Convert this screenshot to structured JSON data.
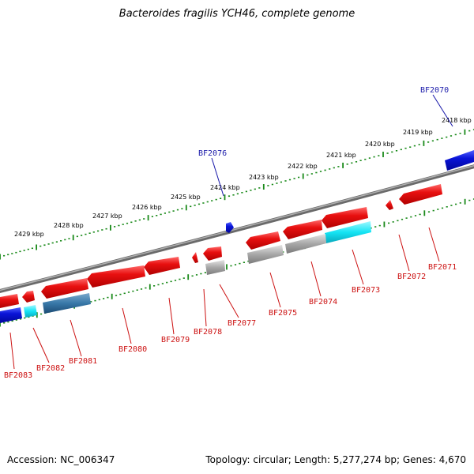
{
  "title": "Bacteroides fragilis YCH46, complete genome",
  "footer": {
    "accession": "Accession: NC_006347",
    "summary": "Topology: circular; Length: 5,277,274 bp; Genes: 4,670"
  },
  "colors": {
    "genome_line": "#8a8a8a",
    "tick": "#1a8a1a",
    "plus_label": "#1a1aaa",
    "minus_label": "#cc1111",
    "red_gene": "#e01010",
    "blue_gene": "#0a14d8",
    "gray_gene": "#aaaaaa",
    "cyan_gene": "#10e0f0",
    "steel_gene": "#3878a8"
  },
  "scale_labels": [
    "2418 kbp",
    "2419 kbp",
    "2420 kbp",
    "2421 kbp",
    "2422 kbp",
    "2423 kbp",
    "2424 kbp",
    "2425 kbp",
    "2426 kbp",
    "2427 kbp",
    "2428 kbp",
    "2429 kbp"
  ],
  "plus_genes": [
    {
      "label": "BF2070",
      "color": "blue"
    },
    {
      "label": "BF2076",
      "color": "blue"
    }
  ],
  "minus_genes": [
    {
      "label": "BF2071",
      "color": "red"
    },
    {
      "label": "BF2072",
      "color": "red"
    },
    {
      "label": "BF2073",
      "color": "red",
      "alt_color": "cyan"
    },
    {
      "label": "BF2074",
      "color": "red",
      "alt_color": "gray"
    },
    {
      "label": "BF2075",
      "color": "red",
      "alt_color": "gray"
    },
    {
      "label": "BF2077",
      "color": "red",
      "alt_color": "gray"
    },
    {
      "label": "BF2078",
      "color": "red"
    },
    {
      "label": "BF2079",
      "color": "red"
    },
    {
      "label": "BF2080",
      "color": "red"
    },
    {
      "label": "BF2081",
      "color": "red",
      "alt_color": "steel"
    },
    {
      "label": "BF2082",
      "color": "red",
      "alt_color": "cyan"
    },
    {
      "label": "BF2083",
      "color": "red",
      "alt_color": "blue"
    }
  ]
}
